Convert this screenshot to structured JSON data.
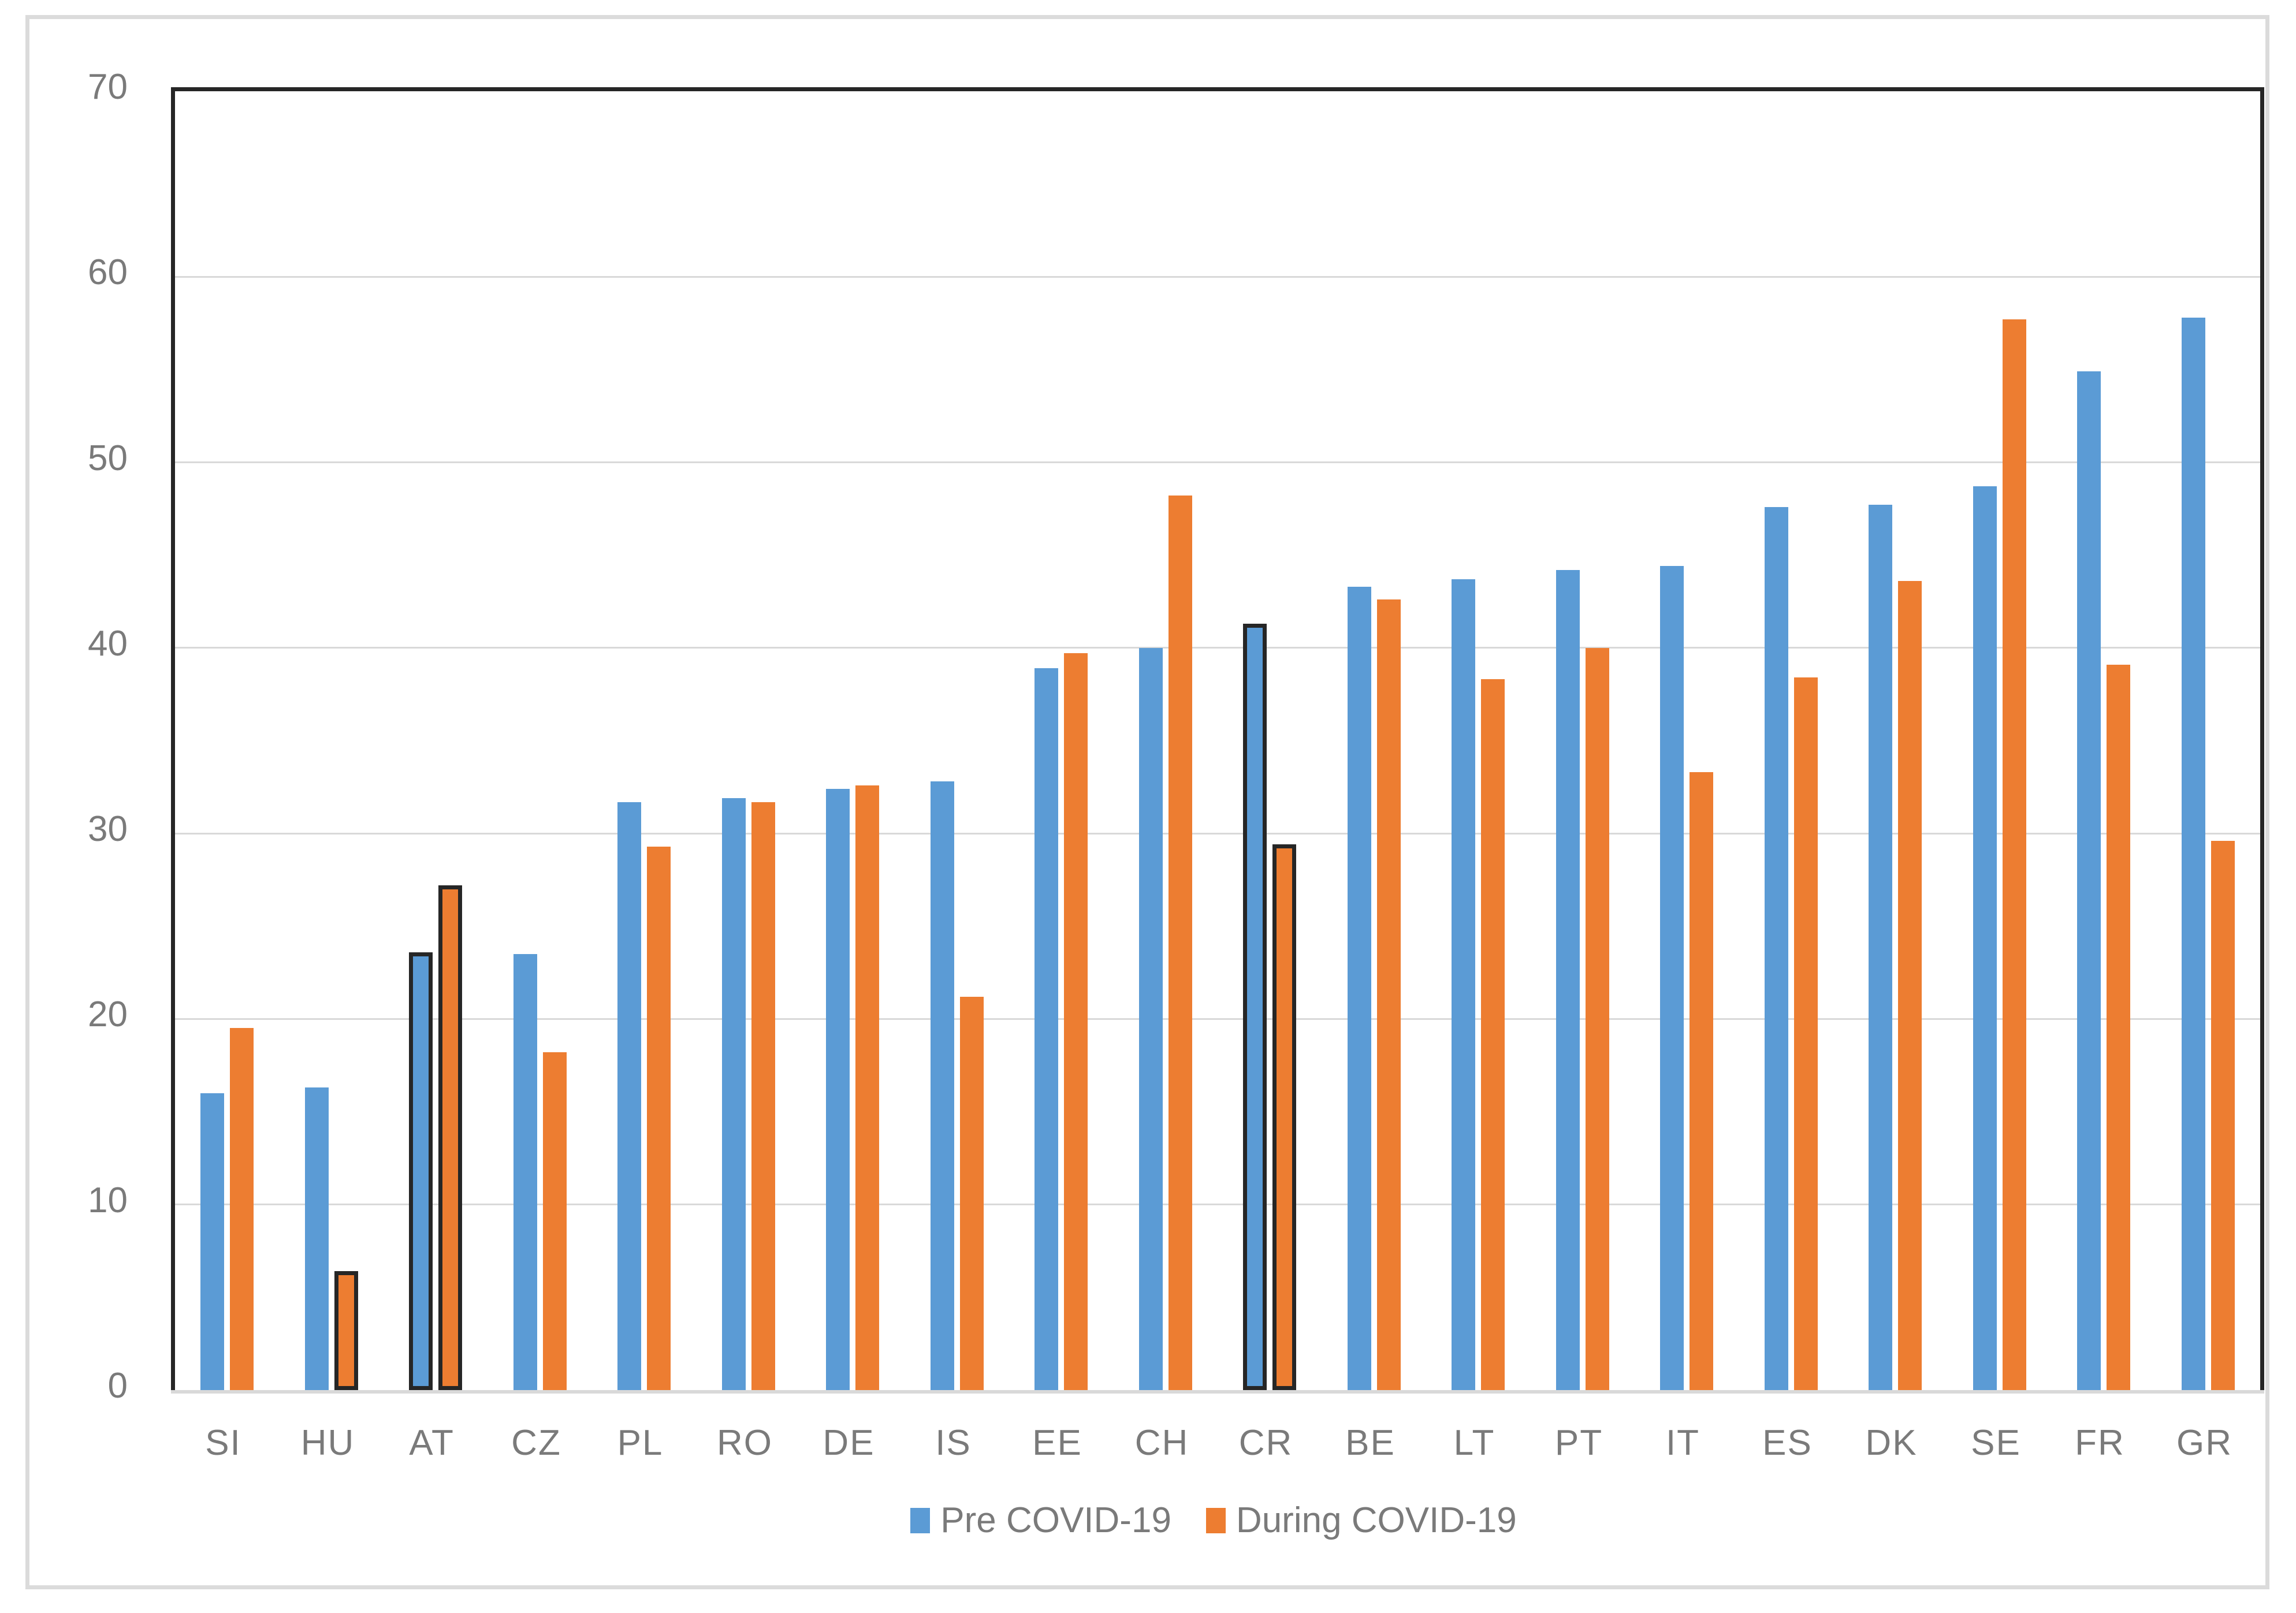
{
  "chart_data": {
    "type": "bar",
    "categories": [
      "SI",
      "HU",
      "AT",
      "CZ",
      "PL",
      "RO",
      "DE",
      "IS",
      "EE",
      "CH",
      "CR",
      "BE",
      "LT",
      "PT",
      "IT",
      "ES",
      "DK",
      "SE",
      "FR",
      "GR"
    ],
    "series": [
      {
        "name": "Pre COVID-19",
        "color": "#5B9BD5",
        "values": [
          16.0,
          16.3,
          23.6,
          23.5,
          31.7,
          31.9,
          32.4,
          32.8,
          38.9,
          40.0,
          41.3,
          43.3,
          43.7,
          44.2,
          44.4,
          47.6,
          47.7,
          48.7,
          54.9,
          57.8
        ],
        "outlined_categories": [
          "AT",
          "CR"
        ]
      },
      {
        "name": "During COVID-19",
        "color": "#ED7D31",
        "values": [
          19.5,
          6.4,
          27.2,
          18.2,
          29.3,
          31.7,
          32.6,
          21.2,
          39.7,
          48.2,
          29.4,
          42.6,
          38.3,
          40.0,
          33.3,
          38.4,
          43.6,
          57.7,
          39.1,
          29.6
        ],
        "outlined_categories": [
          "HU",
          "AT",
          "CR"
        ]
      }
    ],
    "ylim": [
      0,
      70
    ],
    "yticks": [
      0,
      10,
      20,
      30,
      40,
      50,
      60,
      70
    ],
    "ytick_labels": [
      "0",
      "10",
      "20",
      "30",
      "40",
      "50",
      "60",
      "70"
    ],
    "grid": true,
    "legend_position": "bottom",
    "styles": {
      "bar_outline_color": "#262626",
      "gridline_color": "#D9D9D9",
      "axis_border_color": "#262626",
      "zero_line_color": "#D9D9D9",
      "axis_text_color": "#7A7A7A",
      "frame_color": "#DBDBDB",
      "background": "#FFFFFF"
    }
  }
}
